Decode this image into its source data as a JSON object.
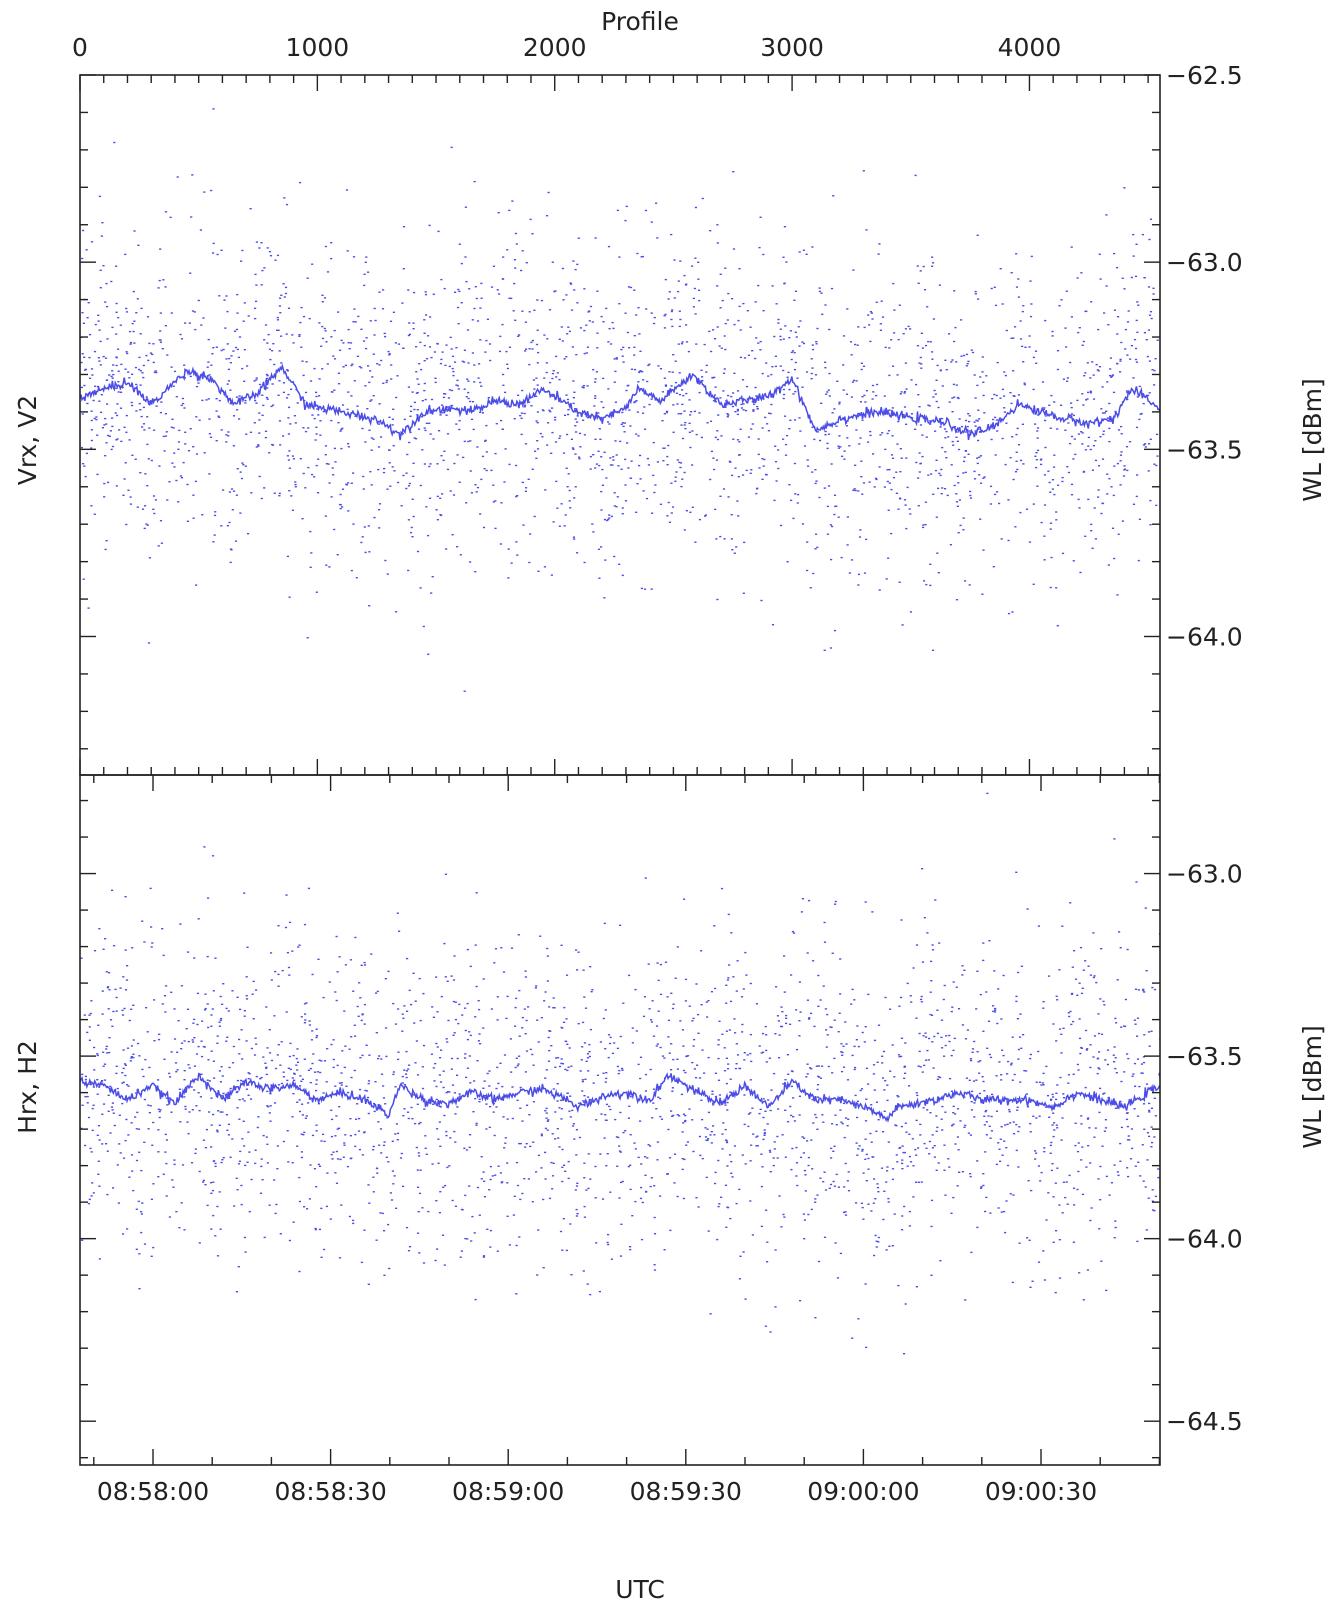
{
  "figure": {
    "top_axis_label": "Profile",
    "bottom_axis_label": "UTC",
    "top_ticks": [
      "0",
      "1000",
      "2000",
      "3000",
      "4000"
    ],
    "top_range": [
      0,
      4550
    ],
    "bottom_ticks": [
      "08:58:00",
      "08:58:30",
      "08:59:00",
      "08:59:30",
      "09:00:00",
      "09:00:30"
    ],
    "colors": {
      "data": "#4c4ce6",
      "axes": "#222222"
    }
  },
  "chart_data": [
    {
      "type": "scatter",
      "title": "",
      "left_label": "Vrx, V2",
      "right_label": "WL [dBm]",
      "ylim": [
        -64.37,
        -62.5
      ],
      "right_ticks": [
        "-62.5",
        "-63.0",
        "-63.5",
        "-64.0"
      ],
      "right_tick_values": [
        -62.5,
        -63.0,
        -63.5,
        -64.0
      ],
      "running_mean": {
        "x": [
          0,
          200,
          300,
          450,
          550,
          650,
          750,
          850,
          950,
          1100,
          1250,
          1350,
          1450,
          1550,
          1650,
          1750,
          1850,
          1950,
          2100,
          2200,
          2300,
          2350,
          2450,
          2580,
          2700,
          2800,
          2900,
          3000,
          3100,
          3200,
          3350,
          3450,
          3550,
          3650,
          3750,
          3850,
          3950,
          4050,
          4150,
          4250,
          4350,
          4430,
          4550
        ],
        "y": [
          -63.36,
          -63.32,
          -63.38,
          -63.29,
          -63.31,
          -63.38,
          -63.35,
          -63.28,
          -63.38,
          -63.4,
          -63.42,
          -63.46,
          -63.4,
          -63.39,
          -63.4,
          -63.37,
          -63.38,
          -63.34,
          -63.4,
          -63.42,
          -63.39,
          -63.34,
          -63.37,
          -63.3,
          -63.38,
          -63.37,
          -63.36,
          -63.31,
          -63.45,
          -63.42,
          -63.4,
          -63.41,
          -63.42,
          -63.43,
          -63.46,
          -63.44,
          -63.38,
          -63.4,
          -63.42,
          -63.43,
          -63.42,
          -63.34,
          -63.39
        ]
      },
      "scatter": {
        "points": 2600,
        "mean": -63.4,
        "spread": 0.22
      }
    },
    {
      "type": "scatter",
      "title": "",
      "left_label": "Hrx, H2",
      "right_label": "WL [dBm]",
      "ylim": [
        -64.62,
        -62.73
      ],
      "right_ticks": [
        "-63.0",
        "-63.5",
        "-64.0",
        "-64.5"
      ],
      "right_tick_values": [
        -63.0,
        -63.5,
        -64.0,
        -64.5
      ],
      "running_mean": {
        "x": [
          0,
          100,
          200,
          300,
          400,
          500,
          600,
          700,
          800,
          900,
          1000,
          1100,
          1200,
          1300,
          1350,
          1450,
          1550,
          1650,
          1750,
          1850,
          1950,
          2050,
          2100,
          2200,
          2300,
          2400,
          2480,
          2600,
          2700,
          2800,
          2900,
          3000,
          3100,
          3200,
          3300,
          3400,
          3450,
          3600,
          3700,
          3800,
          3900,
          4000,
          4100,
          4200,
          4300,
          4400,
          4550
        ],
        "y": [
          -63.57,
          -63.58,
          -63.62,
          -63.58,
          -63.63,
          -63.55,
          -63.62,
          -63.57,
          -63.59,
          -63.58,
          -63.62,
          -63.6,
          -63.62,
          -63.66,
          -63.58,
          -63.62,
          -63.63,
          -63.6,
          -63.62,
          -63.6,
          -63.59,
          -63.62,
          -63.64,
          -63.61,
          -63.6,
          -63.62,
          -63.55,
          -63.6,
          -63.63,
          -63.58,
          -63.64,
          -63.57,
          -63.62,
          -63.62,
          -63.64,
          -63.67,
          -63.64,
          -63.62,
          -63.6,
          -63.62,
          -63.62,
          -63.62,
          -63.64,
          -63.6,
          -63.62,
          -63.64,
          -63.58
        ]
      },
      "scatter": {
        "points": 2600,
        "mean": -63.62,
        "spread": 0.22
      }
    }
  ]
}
